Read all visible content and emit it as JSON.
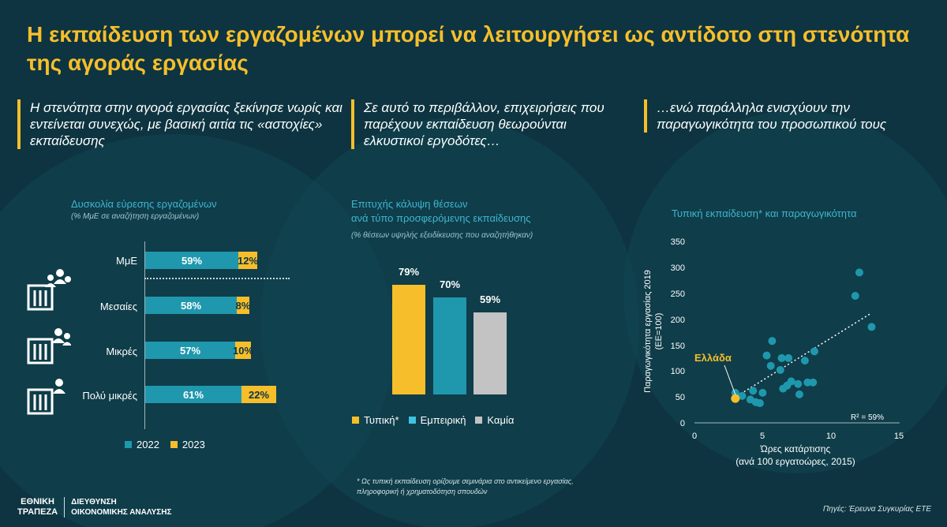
{
  "title": "Η εκπαίδευση των εργαζομένων μπορεί να λειτουργήσει ως αντίδοτο στη στενότητα της αγοράς εργασίας",
  "panels": [
    {
      "heading": "Η στενότητα στην αγορά εργασίας ξεκίνησε νωρίς και εντείνεται συνεχώς, με βασική αιτία τις «αστοχίες» εκπαίδευσης"
    },
    {
      "heading": "Σε αυτό το περιβάλλον, επιχειρήσεις που παρέχουν εκπαίδευση θεωρούνται ελκυστικοί εργοδότες…"
    },
    {
      "heading": "…ενώ παράλληλα ενισχύουν την παραγωγικότητα του προσωπικού τους"
    }
  ],
  "chart_data": [
    {
      "type": "bar",
      "orientation": "horizontal",
      "stacked": true,
      "title": "Δυσκολία εύρεσης εργαζομένων",
      "subtitle": "(% ΜμΕ σε αναζήτηση εργαζομένων)",
      "categories": [
        "ΜμΕ",
        "Μεσαίες",
        "Μικρές",
        "Πολύ μικρές"
      ],
      "series": [
        {
          "name": "2022",
          "values": [
            59,
            58,
            57,
            61
          ],
          "labels": [
            "59%",
            "58%",
            "57%",
            "61%"
          ],
          "color": "#1f98ad"
        },
        {
          "name": "2023",
          "values": [
            12,
            8,
            10,
            22
          ],
          "labels": [
            "12%",
            "8%",
            "10%",
            "22%"
          ],
          "color": "#f7be2b"
        }
      ],
      "legend_position": "bottom"
    },
    {
      "type": "bar",
      "title_line1": "Επιτυχής κάλυψη θέσεων",
      "title_line2": "ανά τύπο προσφερόμενης εκπαίδευσης",
      "subtitle": "(% θέσεων υψηλής εξειδίκευσης που αναζητήθηκαν)",
      "categories": [
        "Τυπική*",
        "Εμπειρική",
        "Καμία"
      ],
      "values": [
        79,
        70,
        59
      ],
      "labels": [
        "79%",
        "70%",
        "59%"
      ],
      "colors": [
        "#f7be2b",
        "#1f98ad",
        "#c3c3c3"
      ],
      "legend_position": "bottom"
    },
    {
      "type": "scatter",
      "title": "Τυπική εκπαίδευση* και παραγωγικότητα",
      "xlabel_line1": "Ώρες κατάρτισης",
      "xlabel_line2": "(ανά 100 εργατοώρες, 2015)",
      "ylabel_line1": "Παραγωγικότητα εργασίας 2019",
      "ylabel_line2": "(ΕΕ=100)",
      "xlim": [
        0,
        15
      ],
      "ylim": [
        0,
        350
      ],
      "xticks": [
        "0",
        "5",
        "10",
        "15"
      ],
      "yticks": [
        "0",
        "50",
        "100",
        "150",
        "200",
        "250",
        "300",
        "350"
      ],
      "points": [
        {
          "x": 3.0,
          "y": 58
        },
        {
          "x": 3.5,
          "y": 52
        },
        {
          "x": 4.1,
          "y": 45
        },
        {
          "x": 4.3,
          "y": 62
        },
        {
          "x": 4.5,
          "y": 40
        },
        {
          "x": 4.8,
          "y": 38
        },
        {
          "x": 5.0,
          "y": 58
        },
        {
          "x": 5.3,
          "y": 130
        },
        {
          "x": 5.6,
          "y": 110
        },
        {
          "x": 5.7,
          "y": 158
        },
        {
          "x": 6.3,
          "y": 102
        },
        {
          "x": 6.4,
          "y": 125
        },
        {
          "x": 6.5,
          "y": 66
        },
        {
          "x": 6.8,
          "y": 72
        },
        {
          "x": 6.9,
          "y": 125
        },
        {
          "x": 7.1,
          "y": 80
        },
        {
          "x": 7.6,
          "y": 75
        },
        {
          "x": 7.7,
          "y": 55
        },
        {
          "x": 8.1,
          "y": 120
        },
        {
          "x": 8.3,
          "y": 78
        },
        {
          "x": 8.7,
          "y": 78
        },
        {
          "x": 8.8,
          "y": 138
        },
        {
          "x": 11.8,
          "y": 245
        },
        {
          "x": 12.1,
          "y": 290
        },
        {
          "x": 13.0,
          "y": 185
        }
      ],
      "highlight": {
        "label": "Ελλάδα",
        "x": 3.0,
        "y": 47,
        "color": "#f7be2b"
      },
      "trendline": {
        "x": [
          2.9,
          13.0
        ],
        "y": [
          48,
          212
        ]
      },
      "r2_label": "R² = 59%",
      "point_color": "#1f98ad"
    }
  ],
  "footnote_line1": "* Ως τυπική εκπαίδευση ορίζουμε σεμινάρια στο αντικείμενο εργασίας,",
  "footnote_line2": "πληροφορική ή χρηματοδότηση σπουδών",
  "source": "Πηγές: Έρευνα Συγκυρίας ΕΤΕ",
  "logo": {
    "line1": "ΕΘΝΙΚΗ",
    "line2": "ΤΡΑΠΕΖΑ",
    "dept_line1": "ΔΙΕΥΘΥΝΣΗ",
    "dept_line2": "ΟΙΚΟΝΟΜΙΚΗΣ ΑΝΑΛΥΣΗΣ"
  }
}
